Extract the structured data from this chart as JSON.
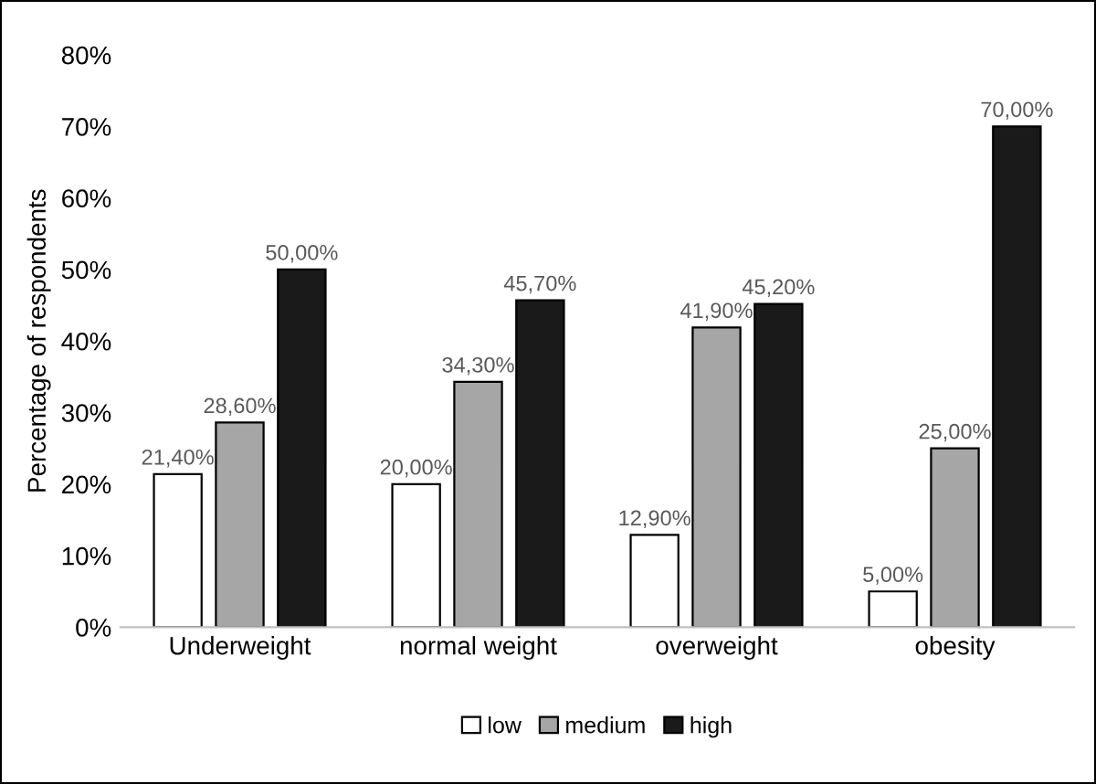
{
  "chart_data": {
    "type": "bar",
    "ylabel": "Percentage of respondents",
    "categories": [
      "Underweight",
      "normal weight",
      "overweight",
      "obesity"
    ],
    "series": [
      {
        "name": "low",
        "color": "#ffffff",
        "values": [
          21.4,
          20.0,
          12.9,
          5.0
        ],
        "value_labels": [
          "21,40%",
          "20,00%",
          "12,90%",
          "5,00%"
        ]
      },
      {
        "name": "medium",
        "color": "#a6a6a6",
        "values": [
          28.6,
          34.3,
          41.9,
          25.0
        ],
        "value_labels": [
          "28,60%",
          "34,30%",
          "41,90%",
          "25,00%"
        ]
      },
      {
        "name": "high",
        "color": "#1a1a1a",
        "values": [
          50.0,
          45.7,
          45.2,
          70.0
        ],
        "value_labels": [
          "50,00%",
          "45,70%",
          "45,20%",
          "70,00%"
        ]
      }
    ],
    "ylim": [
      0,
      80
    ],
    "yticks": [
      {
        "value": 0,
        "label": "0%"
      },
      {
        "value": 10,
        "label": "10%"
      },
      {
        "value": 20,
        "label": "20%"
      },
      {
        "value": 30,
        "label": "30%"
      },
      {
        "value": 40,
        "label": "40%"
      },
      {
        "value": 50,
        "label": "50%"
      },
      {
        "value": 60,
        "label": "60%"
      },
      {
        "value": 70,
        "label": "70%"
      },
      {
        "value": 80,
        "label": "80%"
      }
    ],
    "grid": false,
    "legend": "bottom"
  }
}
